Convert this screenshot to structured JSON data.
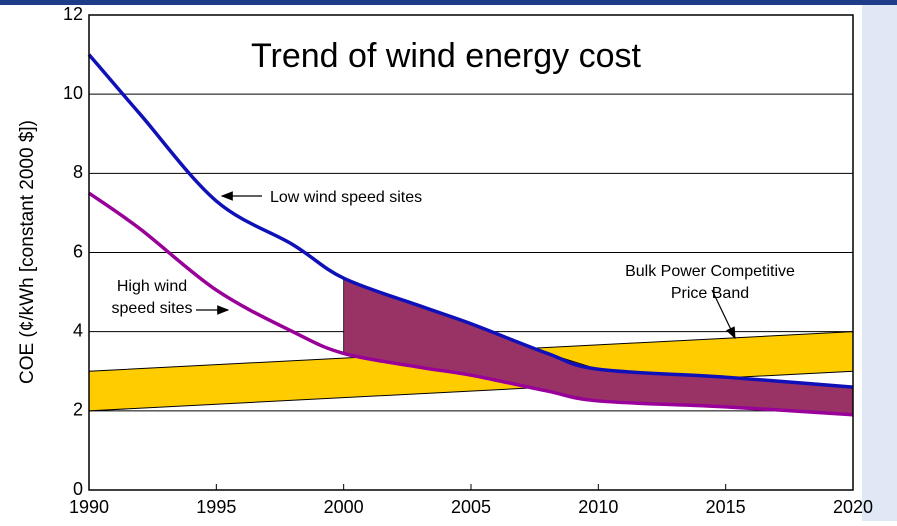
{
  "chart_data": {
    "type": "line",
    "title": "Trend of wind energy cost",
    "y_label": "COE (¢/kWh [constant 2000 $])",
    "x": [
      1990,
      1992,
      1995,
      1998,
      2000,
      2003,
      2005,
      2008,
      2010,
      2015,
      2020
    ],
    "series": [
      {
        "name": "Low wind speed sites",
        "color": "#1010b8",
        "values": [
          11.0,
          9.5,
          7.3,
          6.2,
          5.35,
          4.65,
          4.2,
          3.45,
          3.05,
          2.85,
          2.6
        ]
      },
      {
        "name": "High wind speed sites",
        "color": "#990099",
        "values": [
          7.5,
          6.6,
          5.05,
          4.0,
          3.45,
          3.1,
          2.9,
          2.5,
          2.25,
          2.1,
          1.9
        ]
      }
    ],
    "price_band": {
      "x": [
        1990,
        2020
      ],
      "lower": [
        2,
        3
      ],
      "upper": [
        3,
        4
      ],
      "color": "#ffcc00"
    },
    "shade_start_x": 2000,
    "shade_color": "#993366",
    "annotations": [
      {
        "lines": [
          "Low wind speed sites"
        ]
      },
      {
        "lines": [
          "High wind",
          "speed sites"
        ]
      },
      {
        "lines": [
          "Bulk Power Competitive",
          "Price Band"
        ]
      }
    ],
    "xlim": [
      1990,
      2020
    ],
    "xticks": [
      1990,
      1995,
      2000,
      2005,
      2010,
      2015,
      2020
    ],
    "ylim": [
      0,
      12
    ],
    "yticks": [
      0,
      2,
      4,
      6,
      8,
      10,
      12
    ],
    "grid": true
  }
}
